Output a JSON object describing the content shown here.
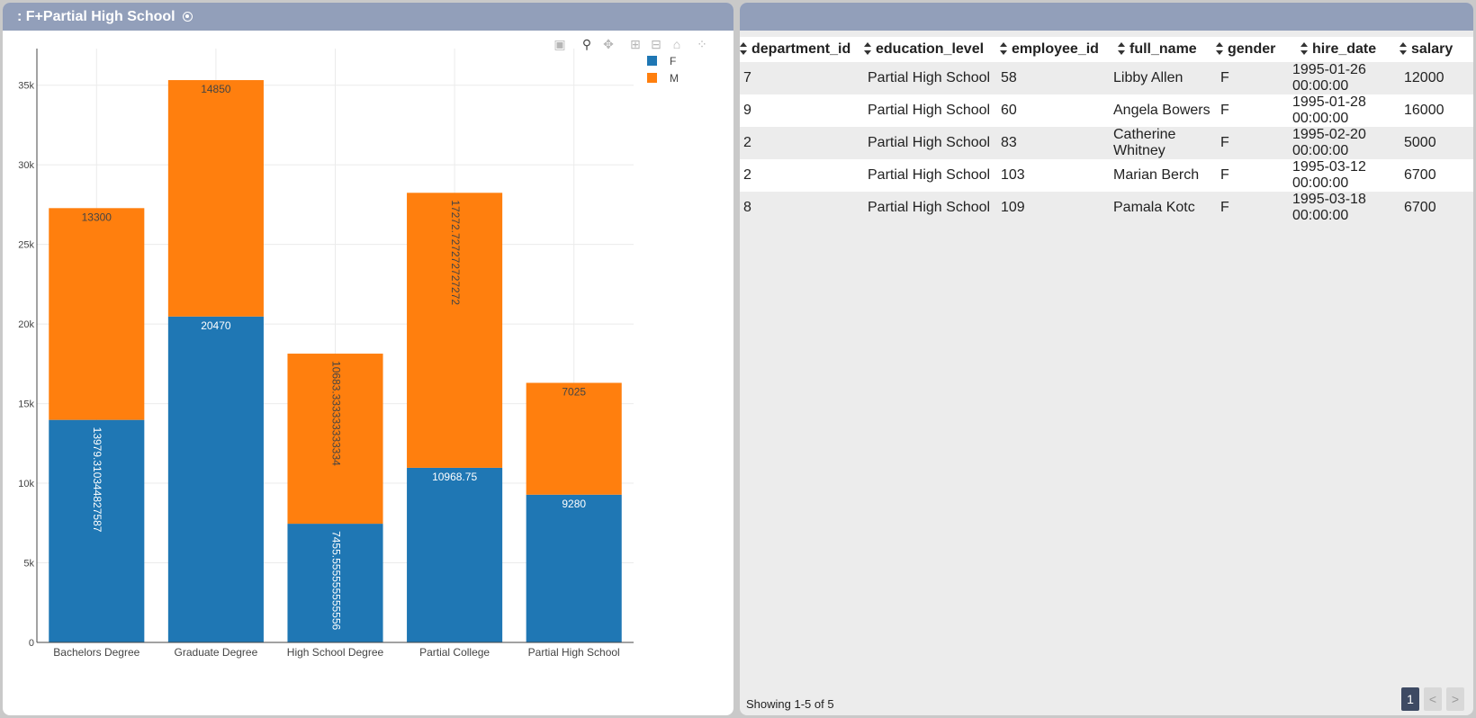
{
  "left_panel": {
    "title": ": F+Partial High School"
  },
  "modebar": {
    "icons": [
      "camera-icon",
      "zoom-icon",
      "pan-icon",
      "zoom-in-icon",
      "zoom-out-icon",
      "home-icon",
      "spike-lines-icon"
    ]
  },
  "chart_data": {
    "type": "bar",
    "barmode": "stack",
    "categories": [
      "Bachelors Degree",
      "Graduate Degree",
      "High School Degree",
      "Partial College",
      "Partial High School"
    ],
    "series": [
      {
        "name": "F",
        "color": "#1f77b4",
        "values": [
          13979.310344827587,
          20470,
          7455.555555555556,
          10968.75,
          9280
        ],
        "labels": [
          "13979.310344827587",
          "20470",
          "7455.555555555556",
          "10968.75",
          "9280"
        ]
      },
      {
        "name": "M",
        "color": "#ff7f0e",
        "values": [
          13300,
          14850,
          10683.333333333334,
          17272.727272727272,
          7025
        ],
        "labels": [
          "13300",
          "14850",
          "10683.333333333334",
          "17272.727272727272",
          "7025"
        ]
      }
    ],
    "ylim": [
      0,
      37300
    ],
    "yticks": [
      0,
      5000,
      10000,
      15000,
      20000,
      25000,
      30000,
      35000
    ],
    "yticklabels": [
      "0",
      "5k",
      "10k",
      "15k",
      "20k",
      "25k",
      "30k",
      "35k"
    ],
    "grid": true,
    "legend": "top-right"
  },
  "table": {
    "columns": [
      "department_id",
      "education_level",
      "employee_id",
      "full_name",
      "gender",
      "hire_date",
      "salary"
    ],
    "rows": [
      [
        "7",
        "Partial High School",
        "58",
        "Libby Allen",
        "F",
        "1995-01-26 00:00:00",
        "12000"
      ],
      [
        "9",
        "Partial High School",
        "60",
        "Angela Bowers",
        "F",
        "1995-01-28 00:00:00",
        "16000"
      ],
      [
        "2",
        "Partial High School",
        "83",
        "Catherine Whitney",
        "F",
        "1995-02-20 00:00:00",
        "5000"
      ],
      [
        "2",
        "Partial High School",
        "103",
        "Marian Berch",
        "F",
        "1995-03-12 00:00:00",
        "6700"
      ],
      [
        "8",
        "Partial High School",
        "109",
        "Pamala Kotc",
        "F",
        "1995-03-18 00:00:00",
        "6700"
      ]
    ],
    "footer": "Showing 1-5 of 5",
    "pager": {
      "current": "1",
      "prev": "<",
      "next": ">"
    }
  }
}
